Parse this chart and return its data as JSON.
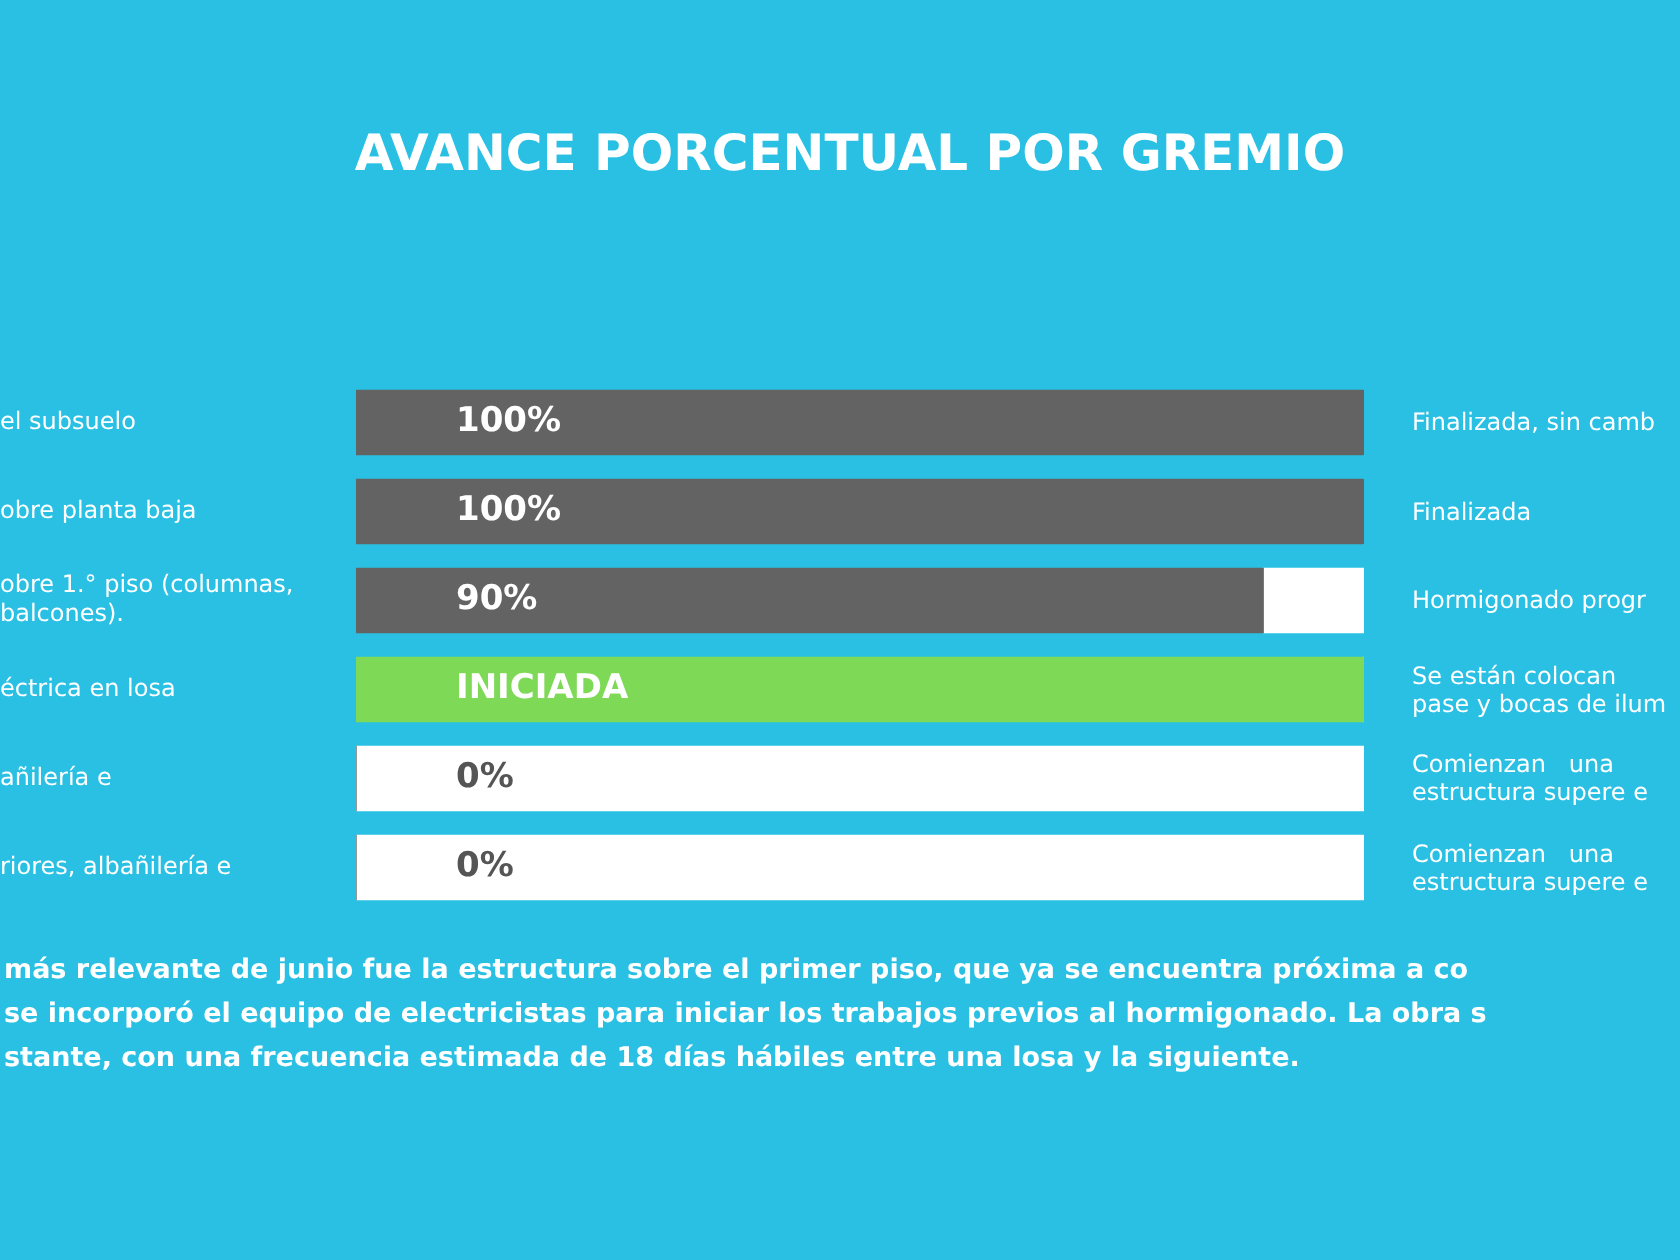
{
  "chart_data": {
    "type": "bar",
    "orientation": "horizontal",
    "stacked": true,
    "title": "AVANCE PORCENTUAL POR GREMIO",
    "categories": [
      "el subsuelo",
      "obre planta baja",
      "obre 1.° piso (columnas,\nbalcones).",
      "éctrica en losa",
      "añilería e",
      "riores, albañilería e"
    ],
    "series": [
      {
        "colors": [
          "#636363",
          "#636363",
          "#636363",
          "#7ed957",
          "#636363",
          "#636363"
        ],
        "values": [
          100,
          100,
          90,
          100,
          0,
          0
        ],
        "value_labels": [
          "100%",
          "100%",
          "90%",
          "INICIADA",
          "0%",
          "0%"
        ]
      },
      {
        "color": "#ffffff",
        "values": [
          0,
          0,
          10,
          0,
          100,
          100
        ]
      }
    ],
    "xlim": [
      0,
      100
    ],
    "tick_labels": "y",
    "grid": false,
    "legend": false,
    "annotations": [
      "Finalizada, sin camb",
      "Finalizada",
      "Hormigonado progr",
      "Se están colocan\npase y bocas de ilum",
      "Comienzan   una\nestructura supere e",
      "Comienzan   una\nestructura supere e",
      "más relevante de junio fue la estructura sobre el primer piso, que ya se encuentra próxima a co\nse incorporó el equipo de electricistas para iniciar los trabajos previos al hormigonado. La obra s\nstante, con una frecuencia estimada de 18 días hábiles entre una losa y la siguiente."
    ]
  }
}
